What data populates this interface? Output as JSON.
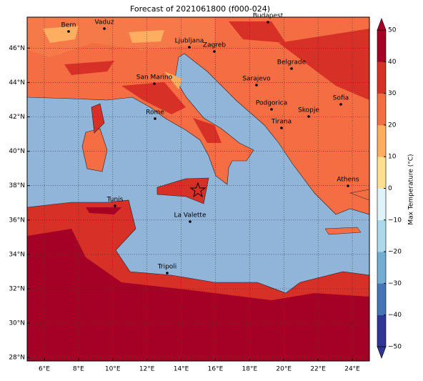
{
  "map": {
    "title": "Forecast of 2021061800 (f000-024)",
    "lon_range": [
      5,
      25.0
    ],
    "lat_range": [
      27.8,
      47.8
    ],
    "lon_ticks": [
      {
        "value": 6,
        "label": "6°E"
      },
      {
        "value": 8,
        "label": "8°E"
      },
      {
        "value": 10,
        "label": "10°E"
      },
      {
        "value": 12,
        "label": "12°E"
      },
      {
        "value": 14,
        "label": "14°E"
      },
      {
        "value": 16,
        "label": "16°E"
      },
      {
        "value": 18,
        "label": "18°E"
      },
      {
        "value": 20,
        "label": "20°E"
      },
      {
        "value": 22,
        "label": "22°E"
      },
      {
        "value": 24,
        "label": "24°E"
      }
    ],
    "lat_ticks": [
      {
        "value": 28,
        "label": "28°N"
      },
      {
        "value": 30,
        "label": "30°N"
      },
      {
        "value": 32,
        "label": "32°N"
      },
      {
        "value": 34,
        "label": "34°N"
      },
      {
        "value": 36,
        "label": "36°N"
      },
      {
        "value": 38,
        "label": "38°N"
      },
      {
        "value": 40,
        "label": "40°N"
      },
      {
        "value": 42,
        "label": "42°N"
      },
      {
        "value": 44,
        "label": "44°N"
      },
      {
        "value": 46,
        "label": "46°N"
      }
    ],
    "cities": [
      "Bern",
      "Vaduz",
      "Budapest",
      "Ljubljana",
      "Zagreb",
      "Belgrade",
      "San Marino",
      "Sarajevo",
      "Sofia",
      "Rome",
      "Podgorica",
      "Skopje",
      "Tirana",
      "Athens",
      "Tunis",
      "La Valette",
      "Tripoli"
    ],
    "colorbar": {
      "label": "Max Temperature (°C)",
      "lim": [
        -50,
        50
      ],
      "ticks": [
        {
          "value": -50,
          "label": "−50"
        },
        {
          "value": -40,
          "label": "−40"
        },
        {
          "value": -30,
          "label": "−30"
        },
        {
          "value": -20,
          "label": "−20"
        },
        {
          "value": -10,
          "label": "−10"
        },
        0,
        10,
        20,
        30,
        40,
        50
      ],
      "colors": [
        "#313695",
        "#4575b4",
        "#74add1",
        "#abd9e9",
        "#e0f3f8",
        "#fee090",
        "#fdae61",
        "#f46d43",
        "#d73027",
        "#a50026"
      ]
    }
  }
}
